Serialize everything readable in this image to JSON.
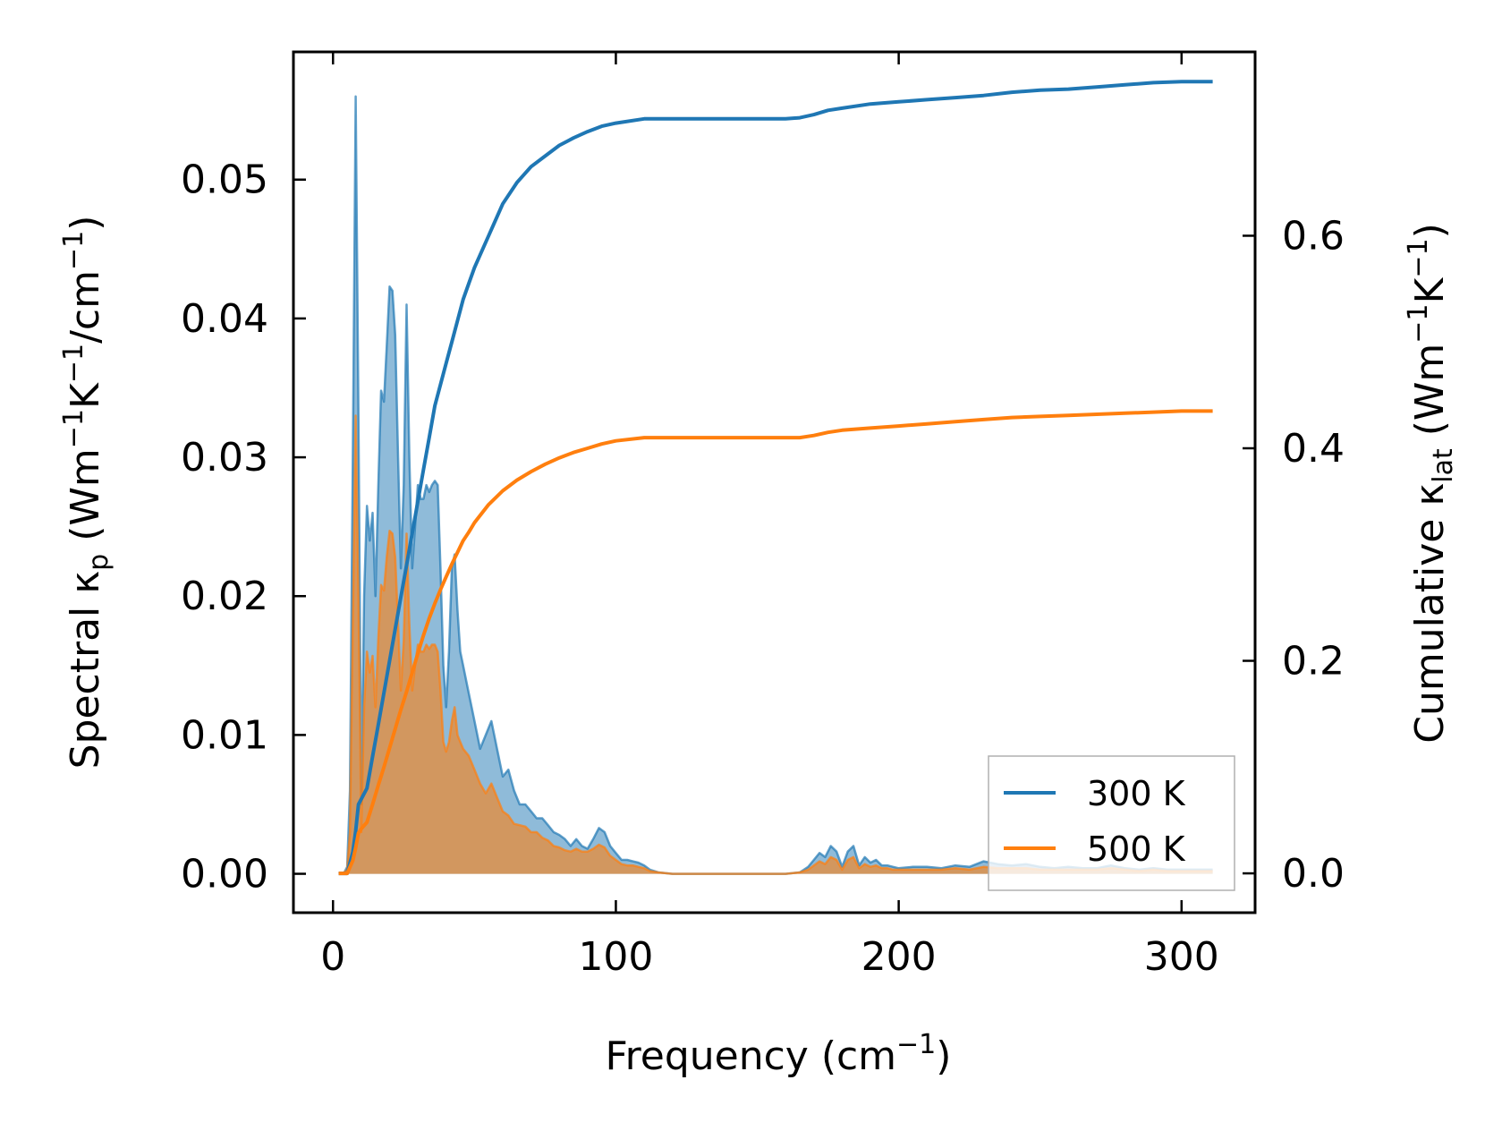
{
  "chart_data": {
    "type": "line",
    "xlabel": "Frequency (cm⁻¹)",
    "xlabel_main": "Frequency (cm",
    "xlabel_sup": "−1",
    "xlabel_close": ")",
    "ylabel_left": "Spectral κp (Wm⁻¹K⁻¹/cm⁻¹)",
    "ylabel_left_parts": {
      "a": "Spectral κ",
      "sub": "p",
      "b": " (Wm",
      "sup1": "−1",
      "c": "K",
      "sup2": "−1",
      "d": "/cm",
      "sup3": "−1",
      "e": ")"
    },
    "ylabel_right": "Cumulative κlat (Wm⁻¹K⁻¹)",
    "ylabel_right_parts": {
      "a": "Cumulative κ",
      "sub": "lat",
      "b": " (Wm",
      "sup1": "−1",
      "c": "K",
      "sup2": "−1",
      "d": ")"
    },
    "xlim": [
      -14,
      326
    ],
    "ylim_left": [
      -0.0028,
      0.0592
    ],
    "ylim_right": [
      -0.037,
      0.773
    ],
    "xticks": [
      0,
      100,
      200,
      300
    ],
    "xtick_labels": [
      "0",
      "100",
      "200",
      "300"
    ],
    "yticks_left": [
      0.0,
      0.01,
      0.02,
      0.03,
      0.04,
      0.05
    ],
    "ytick_labels_left": [
      "0.00",
      "0.01",
      "0.02",
      "0.03",
      "0.04",
      "0.05"
    ],
    "yticks_right": [
      0.0,
      0.2,
      0.4,
      0.6
    ],
    "ytick_labels_right": [
      "0.0",
      "0.2",
      "0.4",
      "0.6"
    ],
    "legend": {
      "position": "lower-right",
      "entries": [
        "300 K",
        "500 K"
      ]
    },
    "colors": {
      "s300": "#1f77b4",
      "s500": "#ff7f0e",
      "fill300": "#1f77b4",
      "fill500": "#ff7f0e"
    },
    "series": [
      {
        "name": "300 K",
        "axis": "left",
        "kind": "spectral",
        "x": [
          2,
          4,
          5,
          6,
          7,
          8,
          9,
          10,
          11,
          12,
          13,
          14,
          15,
          16,
          17,
          18,
          19,
          20,
          21,
          22,
          23,
          24,
          25,
          26,
          27,
          28,
          29,
          30,
          31,
          32,
          33,
          34,
          35,
          36,
          37,
          38,
          39,
          40,
          41,
          42,
          43,
          44,
          45,
          46,
          48,
          50,
          52,
          54,
          56,
          58,
          60,
          62,
          64,
          66,
          68,
          70,
          72,
          74,
          76,
          78,
          80,
          82,
          84,
          86,
          88,
          90,
          92,
          94,
          96,
          98,
          100,
          102,
          104,
          106,
          108,
          110,
          112,
          115,
          120,
          130,
          140,
          150,
          160,
          165,
          168,
          170,
          172,
          174,
          176,
          178,
          180,
          182,
          184,
          186,
          188,
          190,
          192,
          194,
          196,
          198,
          200,
          205,
          210,
          215,
          220,
          225,
          230,
          235,
          240,
          245,
          250,
          255,
          260,
          265,
          270,
          275,
          280,
          285,
          290,
          295,
          300,
          305,
          311
        ],
        "y": [
          0.0,
          0.0001,
          0.0005,
          0.006,
          0.03,
          0.056,
          0.033,
          0.005,
          0.02,
          0.0265,
          0.024,
          0.026,
          0.02,
          0.028,
          0.0348,
          0.034,
          0.038,
          0.0423,
          0.042,
          0.0388,
          0.03,
          0.022,
          0.028,
          0.041,
          0.03,
          0.022,
          0.025,
          0.028,
          0.027,
          0.027,
          0.028,
          0.0275,
          0.028,
          0.0283,
          0.028,
          0.022,
          0.015,
          0.012,
          0.016,
          0.022,
          0.023,
          0.019,
          0.016,
          0.015,
          0.013,
          0.011,
          0.009,
          0.01,
          0.011,
          0.009,
          0.007,
          0.0075,
          0.006,
          0.005,
          0.005,
          0.0045,
          0.004,
          0.004,
          0.0035,
          0.003,
          0.0028,
          0.0025,
          0.002,
          0.0025,
          0.002,
          0.0018,
          0.0025,
          0.0033,
          0.003,
          0.002,
          0.0015,
          0.001,
          0.001,
          0.0009,
          0.0008,
          0.0006,
          0.0003,
          0.0001,
          0.0,
          0.0,
          0.0,
          0.0,
          0.0,
          0.0001,
          0.0005,
          0.001,
          0.0015,
          0.0012,
          0.002,
          0.0016,
          0.0005,
          0.0016,
          0.002,
          0.0006,
          0.0012,
          0.0008,
          0.001,
          0.0006,
          0.0006,
          0.0005,
          0.0004,
          0.0005,
          0.0005,
          0.0004,
          0.0006,
          0.0005,
          0.0009,
          0.0007,
          0.0006,
          0.0007,
          0.0005,
          0.0004,
          0.0005,
          0.0004,
          0.0004,
          0.0006,
          0.0004,
          0.0003,
          0.0004,
          0.0003,
          0.0003,
          0.0003,
          0.0003
        ]
      },
      {
        "name": "500 K",
        "axis": "left",
        "kind": "spectral",
        "x": [
          2,
          4,
          5,
          6,
          7,
          8,
          9,
          10,
          11,
          12,
          13,
          14,
          15,
          16,
          17,
          18,
          19,
          20,
          21,
          22,
          23,
          24,
          25,
          26,
          27,
          28,
          29,
          30,
          31,
          32,
          33,
          34,
          35,
          36,
          37,
          38,
          39,
          40,
          41,
          42,
          43,
          44,
          45,
          46,
          48,
          50,
          52,
          54,
          56,
          58,
          60,
          62,
          64,
          66,
          68,
          70,
          72,
          74,
          76,
          78,
          80,
          82,
          84,
          86,
          88,
          90,
          92,
          94,
          96,
          98,
          100,
          102,
          104,
          106,
          108,
          110,
          112,
          115,
          120,
          130,
          140,
          150,
          160,
          165,
          168,
          170,
          172,
          174,
          176,
          178,
          180,
          182,
          184,
          186,
          188,
          190,
          192,
          194,
          196,
          198,
          200,
          205,
          210,
          215,
          220,
          225,
          230,
          235,
          240,
          245,
          250,
          255,
          260,
          265,
          270,
          275,
          280,
          285,
          290,
          295,
          300,
          305,
          311
        ],
        "y": [
          0.0,
          0.0001,
          0.0003,
          0.003,
          0.018,
          0.033,
          0.02,
          0.003,
          0.012,
          0.016,
          0.0145,
          0.0157,
          0.012,
          0.017,
          0.0208,
          0.0204,
          0.0228,
          0.0247,
          0.0245,
          0.0228,
          0.018,
          0.0132,
          0.0168,
          0.0245,
          0.018,
          0.0132,
          0.015,
          0.0165,
          0.016,
          0.016,
          0.0165,
          0.0162,
          0.0165,
          0.0165,
          0.016,
          0.0132,
          0.0095,
          0.0088,
          0.0095,
          0.011,
          0.012,
          0.01,
          0.0095,
          0.009,
          0.0085,
          0.0075,
          0.0065,
          0.0058,
          0.0065,
          0.0055,
          0.0045,
          0.0042,
          0.0036,
          0.0035,
          0.0034,
          0.003,
          0.003,
          0.0026,
          0.0024,
          0.002,
          0.0019,
          0.0017,
          0.0016,
          0.0018,
          0.0016,
          0.0016,
          0.0018,
          0.0021,
          0.0019,
          0.0013,
          0.001,
          0.0007,
          0.0006,
          0.0006,
          0.0005,
          0.0004,
          0.0002,
          0.0001,
          0.0,
          0.0,
          0.0,
          0.0,
          0.0,
          0.0001,
          0.0003,
          0.0006,
          0.0009,
          0.0007,
          0.0012,
          0.001,
          0.0003,
          0.001,
          0.0012,
          0.0004,
          0.0007,
          0.0005,
          0.0006,
          0.0004,
          0.0004,
          0.0003,
          0.0003,
          0.0003,
          0.0003,
          0.0003,
          0.0004,
          0.0003,
          0.0005,
          0.0004,
          0.0004,
          0.0004,
          0.0003,
          0.0003,
          0.0003,
          0.0003,
          0.0003,
          0.0004,
          0.0003,
          0.0002,
          0.0003,
          0.0002,
          0.0002,
          0.0002,
          0.0002
        ]
      },
      {
        "name": "300 K",
        "axis": "right",
        "kind": "cumulative",
        "x": [
          2,
          5,
          7,
          8,
          9,
          10,
          12,
          14,
          16,
          18,
          20,
          22,
          24,
          26,
          28,
          30,
          32,
          34,
          36,
          38,
          40,
          42,
          44,
          46,
          48,
          50,
          55,
          60,
          65,
          70,
          75,
          80,
          85,
          90,
          95,
          100,
          110,
          120,
          130,
          140,
          150,
          160,
          165,
          170,
          175,
          180,
          190,
          200,
          210,
          220,
          230,
          240,
          250,
          260,
          270,
          280,
          290,
          300,
          311
        ],
        "y": [
          0.0,
          0.0,
          0.02,
          0.04,
          0.065,
          0.07,
          0.08,
          0.11,
          0.14,
          0.17,
          0.2,
          0.23,
          0.26,
          0.29,
          0.32,
          0.35,
          0.38,
          0.41,
          0.44,
          0.46,
          0.48,
          0.5,
          0.52,
          0.54,
          0.555,
          0.57,
          0.6,
          0.63,
          0.65,
          0.665,
          0.675,
          0.685,
          0.692,
          0.698,
          0.703,
          0.706,
          0.71,
          0.71,
          0.71,
          0.71,
          0.71,
          0.71,
          0.711,
          0.714,
          0.718,
          0.72,
          0.724,
          0.726,
          0.728,
          0.73,
          0.732,
          0.735,
          0.737,
          0.738,
          0.74,
          0.742,
          0.744,
          0.745,
          0.745
        ]
      },
      {
        "name": "500 K",
        "axis": "right",
        "kind": "cumulative",
        "x": [
          2,
          5,
          7,
          8,
          9,
          10,
          12,
          14,
          16,
          18,
          20,
          22,
          24,
          26,
          28,
          30,
          32,
          34,
          36,
          38,
          40,
          42,
          44,
          46,
          48,
          50,
          55,
          60,
          65,
          70,
          75,
          80,
          85,
          90,
          95,
          100,
          110,
          120,
          130,
          140,
          150,
          160,
          165,
          170,
          175,
          180,
          190,
          200,
          210,
          220,
          230,
          240,
          250,
          260,
          270,
          280,
          290,
          300,
          311
        ],
        "y": [
          0.0,
          0.0,
          0.012,
          0.024,
          0.038,
          0.042,
          0.048,
          0.065,
          0.083,
          0.1,
          0.118,
          0.136,
          0.154,
          0.171,
          0.189,
          0.207,
          0.224,
          0.24,
          0.254,
          0.267,
          0.279,
          0.291,
          0.302,
          0.313,
          0.321,
          0.33,
          0.347,
          0.36,
          0.37,
          0.378,
          0.385,
          0.391,
          0.396,
          0.4,
          0.404,
          0.407,
          0.41,
          0.41,
          0.41,
          0.41,
          0.41,
          0.41,
          0.41,
          0.412,
          0.415,
          0.417,
          0.419,
          0.421,
          0.423,
          0.425,
          0.427,
          0.429,
          0.43,
          0.431,
          0.432,
          0.433,
          0.434,
          0.435,
          0.435
        ]
      }
    ]
  }
}
